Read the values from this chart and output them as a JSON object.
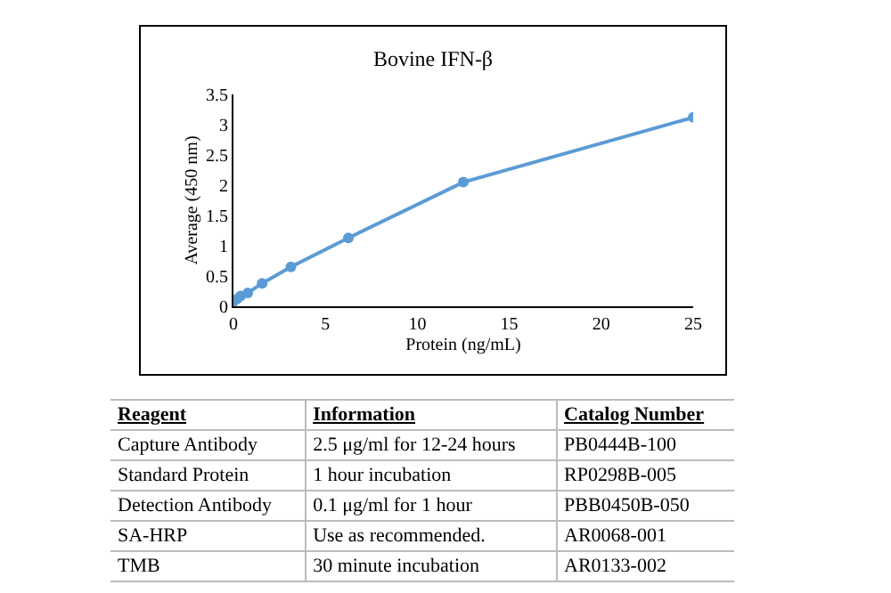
{
  "chart_data": {
    "type": "line",
    "title": "Bovine IFN-β",
    "xlabel": "Protein (ng/mL)",
    "ylabel": "Average (450 nm)",
    "x": [
      0,
      0.195,
      0.39,
      0.78,
      1.56,
      3.125,
      6.25,
      12.5,
      25
    ],
    "series": [
      {
        "color": "#5b9bd5",
        "values": [
          0.08,
          0.12,
          0.17,
          0.22,
          0.38,
          0.65,
          1.13,
          2.05,
          3.12
        ]
      }
    ],
    "xlim": [
      0,
      25
    ],
    "xticks": [
      0,
      5,
      10,
      15,
      20,
      25
    ],
    "ylim": [
      0,
      3.5
    ],
    "yticks": [
      0,
      0.5,
      1,
      1.5,
      2,
      2.5,
      3,
      3.5
    ],
    "grid": false,
    "marker": "circle",
    "line_style": "solid",
    "annotations": [
      "Reagent",
      "Information",
      "Catalog Number",
      "Capture Antibody",
      "2.5 μg/ml for 12-24 hours",
      "PB0444B-100",
      "Standard Protein",
      "1 hour incubation",
      "RP0298B-005",
      "Detection Antibody",
      "0.1 μg/ml for 1 hour",
      "PBB0450B-050",
      "SA-HRP",
      "Use as recommended.",
      "AR0068-001",
      "TMB",
      "30 minute incubation",
      "AR0133-002"
    ]
  }
}
